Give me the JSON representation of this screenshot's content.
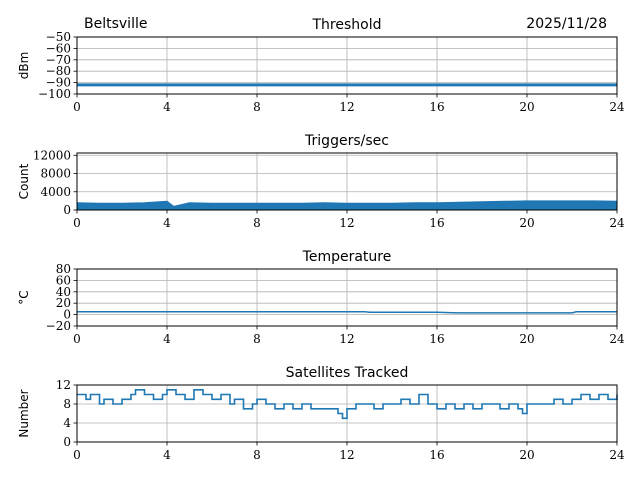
{
  "header": {
    "site": "Beltsville",
    "date": "2025/11/28"
  },
  "colors": {
    "series": "#1f77b4",
    "grid": "#b0b0b0",
    "axes": "#000000"
  },
  "chart_data": [
    {
      "id": "threshold",
      "type": "line",
      "title": "Threshold",
      "xlabel": "",
      "ylabel": "dBm",
      "xlim": [
        0,
        24
      ],
      "ylim": [
        -100,
        -50
      ],
      "xticks": [
        0,
        4,
        8,
        12,
        16,
        20,
        24
      ],
      "yticks": [
        -100,
        -90,
        -80,
        -70,
        -60,
        -50
      ],
      "yticklabels": [
        "−100",
        "−90",
        "−80",
        "−70",
        "−60",
        "−50"
      ],
      "grid": true,
      "series": [
        {
          "x": [
            0,
            2,
            4,
            6,
            8,
            10,
            12,
            14,
            16,
            18,
            20,
            22,
            24
          ],
          "y": [
            -92,
            -92,
            -92,
            -92,
            -92,
            -92,
            -92,
            -92,
            -92,
            -92,
            -92,
            -92,
            -92
          ]
        }
      ]
    },
    {
      "id": "triggers",
      "type": "area",
      "title": "Triggers/sec",
      "xlabel": "",
      "ylabel": "Count",
      "xlim": [
        0,
        24
      ],
      "ylim": [
        0,
        12500
      ],
      "xticks": [
        0,
        4,
        8,
        12,
        16,
        20,
        24
      ],
      "yticks": [
        0,
        4000,
        8000,
        12000
      ],
      "yticklabels": [
        "0",
        "4000",
        "8000",
        "12000"
      ],
      "grid": true,
      "series": [
        {
          "x": [
            0,
            1,
            2,
            3,
            4,
            4.3,
            5,
            6,
            7,
            8,
            9,
            10,
            11,
            12,
            13,
            14,
            15,
            16,
            17,
            18,
            19,
            20,
            21,
            22,
            23,
            24
          ],
          "y": [
            1600,
            1500,
            1500,
            1600,
            1900,
            800,
            1600,
            1500,
            1500,
            1500,
            1500,
            1500,
            1600,
            1500,
            1500,
            1500,
            1600,
            1600,
            1700,
            1800,
            1900,
            2000,
            2000,
            2000,
            2000,
            1900
          ]
        }
      ]
    },
    {
      "id": "temperature",
      "type": "line",
      "title": "Temperature",
      "xlabel": "",
      "ylabel": "°C",
      "xlim": [
        0,
        24
      ],
      "ylim": [
        -20,
        80
      ],
      "xticks": [
        0,
        4,
        8,
        12,
        16,
        20,
        24
      ],
      "yticks": [
        -20,
        0,
        20,
        40,
        60,
        80
      ],
      "yticklabels": [
        "−20",
        "0",
        "20",
        "40",
        "60",
        "80"
      ],
      "grid": true,
      "series": [
        {
          "x": [
            0,
            4,
            8,
            12,
            12.8,
            13,
            14,
            15,
            16,
            16.5,
            17,
            18,
            19,
            20,
            21,
            22,
            22.2,
            23,
            24
          ],
          "y": [
            5,
            5,
            5,
            5,
            5,
            4,
            4,
            4,
            4,
            3.5,
            3,
            3,
            3,
            3,
            3,
            3,
            5,
            5,
            5
          ]
        }
      ]
    },
    {
      "id": "satellites",
      "type": "line",
      "title": "Satellites Tracked",
      "xlabel": "",
      "ylabel": "Number",
      "xlim": [
        0,
        24
      ],
      "ylim": [
        0,
        12
      ],
      "xticks": [
        0,
        4,
        8,
        12,
        16,
        20,
        24
      ],
      "yticks": [
        0,
        4,
        8,
        12
      ],
      "yticklabels": [
        "0",
        "4",
        "8",
        "12"
      ],
      "grid": true,
      "series": [
        {
          "x": [
            0,
            0.4,
            0.6,
            1,
            1.2,
            1.6,
            2,
            2.4,
            2.6,
            3,
            3.4,
            3.8,
            4,
            4.4,
            4.8,
            5.2,
            5.6,
            6,
            6.4,
            6.8,
            7,
            7.4,
            7.8,
            8,
            8.4,
            8.8,
            9.2,
            9.6,
            10,
            10.4,
            10.8,
            11.2,
            11.6,
            11.8,
            12,
            12.4,
            12.8,
            13.2,
            13.6,
            14,
            14.4,
            14.8,
            15.2,
            15.6,
            16,
            16.4,
            16.8,
            17.2,
            17.6,
            18,
            18.4,
            18.8,
            19.2,
            19.6,
            19.8,
            20,
            20.4,
            20.8,
            21.2,
            21.6,
            22,
            22.4,
            22.8,
            23.2,
            23.6,
            24
          ],
          "y": [
            10,
            9,
            10,
            8,
            9,
            8,
            9,
            10,
            11,
            10,
            9,
            10,
            11,
            10,
            9,
            11,
            10,
            9,
            10,
            8,
            9,
            7,
            8,
            9,
            8,
            7,
            8,
            7,
            8,
            7,
            7,
            7,
            6,
            5,
            7,
            8,
            8,
            7,
            8,
            8,
            9,
            8,
            10,
            8,
            7,
            8,
            7,
            8,
            7,
            8,
            8,
            7,
            8,
            7,
            6,
            8,
            8,
            8,
            9,
            8,
            9,
            10,
            9,
            10,
            9,
            10
          ]
        }
      ]
    }
  ]
}
